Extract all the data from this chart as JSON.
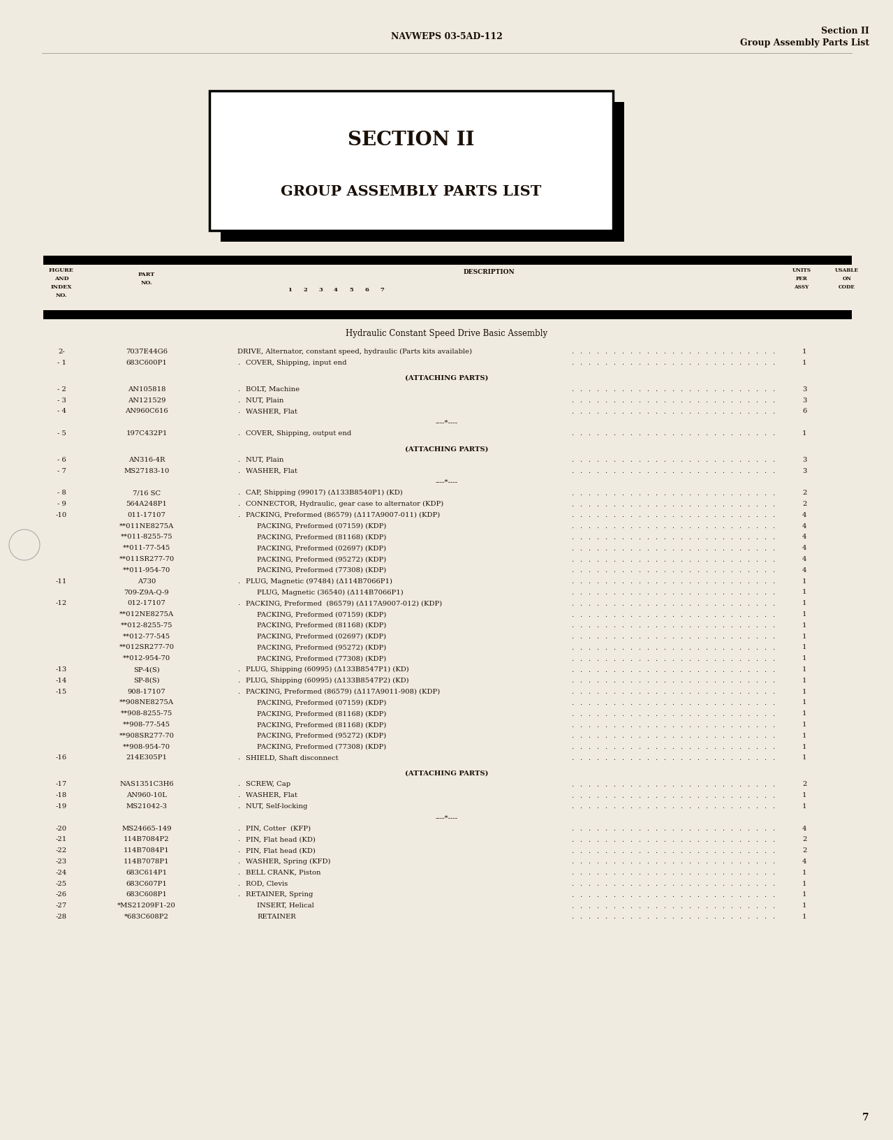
{
  "page_header_center": "NAVWEPS 03-5AD-112",
  "page_header_right_line1": "Section II",
  "page_header_right_line2": "Group Assembly Parts List",
  "section_title_line1": "SECTION II",
  "section_title_line2": "GROUP ASSEMBLY PARTS LIST",
  "assembly_title": "Hydraulic Constant Speed Drive Basic Assembly",
  "rows": [
    {
      "fig": "2-",
      "part": "7037E44G6",
      "indent": 0,
      "desc": "DRIVE, Alternator, constant speed, hydraulic (Parts kits available)",
      "dots": true,
      "qty": "1"
    },
    {
      "fig": "- 1",
      "part": "683C600P1",
      "indent": 1,
      "desc": "COVER, Shipping, input end",
      "dots": true,
      "qty": "1"
    },
    {
      "fig": "",
      "part": "",
      "indent": 0,
      "desc": "",
      "dots": false,
      "qty": "",
      "spacer": true
    },
    {
      "fig": "",
      "part": "",
      "indent": 0,
      "desc": "(ATTACHING PARTS)",
      "dots": false,
      "qty": "",
      "center": true,
      "bold": true
    },
    {
      "fig": "- 2",
      "part": "AN105818",
      "indent": 1,
      "desc": "BOLT, Machine",
      "dots": true,
      "qty": "3"
    },
    {
      "fig": "- 3",
      "part": "AN121529",
      "indent": 1,
      "desc": "NUT, Plain",
      "dots": true,
      "qty": "3"
    },
    {
      "fig": "- 4",
      "part": "AN960C616",
      "indent": 1,
      "desc": "WASHER, Flat",
      "dots": true,
      "qty": "6"
    },
    {
      "fig": "",
      "part": "",
      "indent": 0,
      "desc": "----*----",
      "dots": false,
      "qty": "",
      "center": true,
      "bold": false
    },
    {
      "fig": "- 5",
      "part": "197C432P1",
      "indent": 1,
      "desc": "COVER, Shipping, output end",
      "dots": true,
      "qty": "1"
    },
    {
      "fig": "",
      "part": "",
      "indent": 0,
      "desc": "",
      "dots": false,
      "qty": "",
      "spacer": true
    },
    {
      "fig": "",
      "part": "",
      "indent": 0,
      "desc": "(ATTACHING PARTS)",
      "dots": false,
      "qty": "",
      "center": true,
      "bold": true
    },
    {
      "fig": "- 6",
      "part": "AN316-4R",
      "indent": 1,
      "desc": "NUT, Plain",
      "dots": true,
      "qty": "3"
    },
    {
      "fig": "- 7",
      "part": "MS27183-10",
      "indent": 1,
      "desc": "WASHER, Flat",
      "dots": true,
      "qty": "3"
    },
    {
      "fig": "",
      "part": "",
      "indent": 0,
      "desc": "----*----",
      "dots": false,
      "qty": "",
      "center": true,
      "bold": false
    },
    {
      "fig": "- 8",
      "part": "7/16 SC",
      "indent": 1,
      "desc": "CAP, Shipping (99017) (Δ133B8540P1) (KD)",
      "dots": true,
      "qty": "2"
    },
    {
      "fig": "- 9",
      "part": "564A248P1",
      "indent": 1,
      "desc": "CONNECTOR, Hydraulic, gear case to alternator (KDP)",
      "dots": true,
      "qty": "2"
    },
    {
      "fig": "-10",
      "part": "011-17107",
      "indent": 1,
      "desc": "PACKING, Preformed (86579) (Δ117A9007-011) (KDP)",
      "dots": true,
      "qty": "4"
    },
    {
      "fig": "",
      "part": "**011NE8275A",
      "indent": 2,
      "desc": "PACKING, Preformed (07159) (KDP)",
      "dots": true,
      "qty": "4"
    },
    {
      "fig": "",
      "part": "**011-8255-75",
      "indent": 2,
      "desc": "PACKING, Preformed (81168) (KDP)",
      "dots": true,
      "qty": "4"
    },
    {
      "fig": "",
      "part": "**011-77-545",
      "indent": 2,
      "desc": "PACKING, Preformed (02697) (KDP)",
      "dots": true,
      "qty": "4"
    },
    {
      "fig": "",
      "part": "**011SR277-70",
      "indent": 2,
      "desc": "PACKING, Preformed (95272) (KDP)",
      "dots": true,
      "qty": "4"
    },
    {
      "fig": "",
      "part": "**011-954-70",
      "indent": 2,
      "desc": "PACKING, Preformed (77308) (KDP)",
      "dots": true,
      "qty": "4"
    },
    {
      "fig": "-11",
      "part": "A730",
      "indent": 1,
      "desc": "PLUG, Magnetic (97484) (Δ114B7066P1)",
      "dots": true,
      "qty": "1"
    },
    {
      "fig": "",
      "part": "709-Z9A-Q-9",
      "indent": 2,
      "desc": "PLUG, Magnetic (36540) (Δ114B7066P1)",
      "dots": true,
      "qty": "1"
    },
    {
      "fig": "-12",
      "part": "012-17107",
      "indent": 1,
      "desc": "PACKING, Preformed  (86579) (Δ117A9007-012) (KDP)",
      "dots": true,
      "qty": "1"
    },
    {
      "fig": "",
      "part": "**012NE8275A",
      "indent": 2,
      "desc": "PACKING, Preformed (07159) (KDP)",
      "dots": true,
      "qty": "1"
    },
    {
      "fig": "",
      "part": "**012-8255-75",
      "indent": 2,
      "desc": "PACKING, Preformed (81168) (KDP)",
      "dots": true,
      "qty": "1"
    },
    {
      "fig": "",
      "part": "**012-77-545",
      "indent": 2,
      "desc": "PACKING, Preformed (02697) (KDP)",
      "dots": true,
      "qty": "1"
    },
    {
      "fig": "",
      "part": "**012SR277-70",
      "indent": 2,
      "desc": "PACKING, Preformed (95272) (KDP)",
      "dots": true,
      "qty": "1"
    },
    {
      "fig": "",
      "part": "**012-954-70",
      "indent": 2,
      "desc": "PACKING, Preformed (77308) (KDP)",
      "dots": true,
      "qty": "1"
    },
    {
      "fig": "-13",
      "part": "SP-4(S)",
      "indent": 1,
      "desc": "PLUG, Shipping (60995) (Δ133B8547P1) (KD)",
      "dots": true,
      "qty": "1"
    },
    {
      "fig": "-14",
      "part": "SP-8(S)",
      "indent": 1,
      "desc": "PLUG, Shipping (60995) (Δ133B8547P2) (KD)",
      "dots": true,
      "qty": "1"
    },
    {
      "fig": "-15",
      "part": "908-17107",
      "indent": 1,
      "desc": "PACKING, Preformed (86579) (Δ117A9011-908) (KDP)",
      "dots": true,
      "qty": "1"
    },
    {
      "fig": "",
      "part": "**908NE8275A",
      "indent": 2,
      "desc": "PACKING, Preformed (07159) (KDP)",
      "dots": true,
      "qty": "1"
    },
    {
      "fig": "",
      "part": "**908-8255-75",
      "indent": 2,
      "desc": "PACKING, Preformed (81168) (KDP)",
      "dots": true,
      "qty": "1"
    },
    {
      "fig": "",
      "part": "**908-77-545",
      "indent": 2,
      "desc": "PACKING, Preformed (81168) (KDP)",
      "dots": true,
      "qty": "1"
    },
    {
      "fig": "",
      "part": "**908SR277-70",
      "indent": 2,
      "desc": "PACKING, Preformed (95272) (KDP)",
      "dots": true,
      "qty": "1"
    },
    {
      "fig": "",
      "part": "**908-954-70",
      "indent": 2,
      "desc": "PACKING, Preformed (77308) (KDP)",
      "dots": true,
      "qty": "1"
    },
    {
      "fig": "-16",
      "part": "214E305P1",
      "indent": 1,
      "desc": "SHIELD, Shaft disconnect",
      "dots": true,
      "qty": "1"
    },
    {
      "fig": "",
      "part": "",
      "indent": 0,
      "desc": "",
      "dots": false,
      "qty": "",
      "spacer": true
    },
    {
      "fig": "",
      "part": "",
      "indent": 0,
      "desc": "(ATTACHING PARTS)",
      "dots": false,
      "qty": "",
      "center": true,
      "bold": true
    },
    {
      "fig": "-17",
      "part": "NAS1351C3H6",
      "indent": 1,
      "desc": "SCREW, Cap",
      "dots": true,
      "qty": "2"
    },
    {
      "fig": "-18",
      "part": "AN960-10L",
      "indent": 1,
      "desc": "WASHER, Flat",
      "dots": true,
      "qty": "1"
    },
    {
      "fig": "-19",
      "part": "MS21042-3",
      "indent": 1,
      "desc": "NUT, Self-locking",
      "dots": true,
      "qty": "1"
    },
    {
      "fig": "",
      "part": "",
      "indent": 0,
      "desc": "----*----",
      "dots": false,
      "qty": "",
      "center": true,
      "bold": false
    },
    {
      "fig": "-20",
      "part": "MS24665-149",
      "indent": 1,
      "desc": "PIN, Cotter  (KFP)",
      "dots": true,
      "qty": "4"
    },
    {
      "fig": "-21",
      "part": "114B7084P2",
      "indent": 1,
      "desc": "PIN, Flat head (KD)",
      "dots": true,
      "qty": "2"
    },
    {
      "fig": "-22",
      "part": "114B7084P1",
      "indent": 1,
      "desc": "PIN, Flat head (KD)",
      "dots": true,
      "qty": "2"
    },
    {
      "fig": "-23",
      "part": "114B7078P1",
      "indent": 1,
      "desc": "WASHER, Spring (KFD)",
      "dots": true,
      "qty": "4"
    },
    {
      "fig": "-24",
      "part": "683C614P1",
      "indent": 1,
      "desc": "BELL CRANK, Piston",
      "dots": true,
      "qty": "1"
    },
    {
      "fig": "-25",
      "part": "683C607P1",
      "indent": 1,
      "desc": "ROD, Clevis",
      "dots": true,
      "qty": "1"
    },
    {
      "fig": "-26",
      "part": "683C608P1",
      "indent": 1,
      "desc": "RETAINER, Spring",
      "dots": true,
      "qty": "1"
    },
    {
      "fig": "-27",
      "part": "*MS21209F1-20",
      "indent": 2,
      "desc": "INSERT, Helical",
      "dots": true,
      "qty": "1"
    },
    {
      "fig": "-28",
      "part": "*683C608P2",
      "indent": 2,
      "desc": "RETAINER",
      "dots": true,
      "qty": "1"
    }
  ],
  "page_number": "7",
  "bg_color": "#f0ebe0"
}
